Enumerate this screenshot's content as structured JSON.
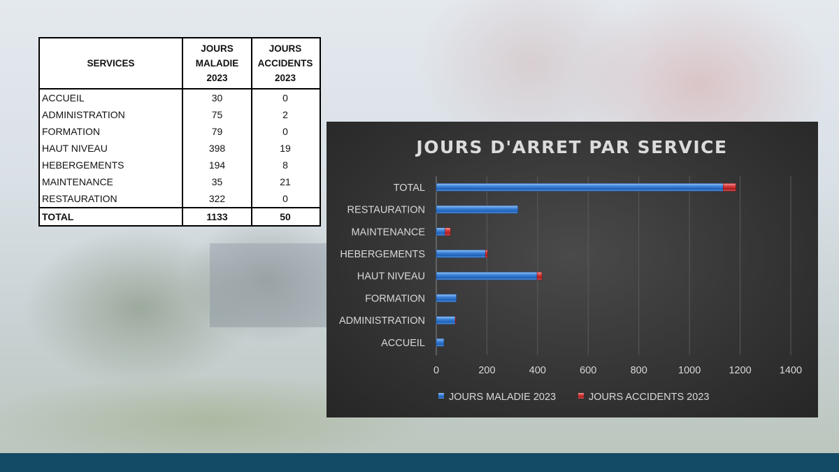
{
  "table": {
    "headers": {
      "services": "SERVICES",
      "maladie": [
        "JOURS",
        "MALADIE",
        "2023"
      ],
      "accidents": [
        "JOURS",
        "ACCIDENTS",
        "2023"
      ]
    },
    "rows": [
      {
        "service": "ACCUEIL",
        "maladie": "30",
        "accidents": "0"
      },
      {
        "service": "ADMINISTRATION",
        "maladie": "75",
        "accidents": "2"
      },
      {
        "service": "FORMATION",
        "maladie": "79",
        "accidents": "0"
      },
      {
        "service": "HAUT NIVEAU",
        "maladie": "398",
        "accidents": "19"
      },
      {
        "service": "HEBERGEMENTS",
        "maladie": "194",
        "accidents": "8"
      },
      {
        "service": "MAINTENANCE",
        "maladie": "35",
        "accidents": "21"
      },
      {
        "service": "RESTAURATION",
        "maladie": "322",
        "accidents": "0"
      }
    ],
    "total": {
      "service": "TOTAL",
      "maladie": "1133",
      "accidents": "50"
    }
  },
  "chart_data": {
    "type": "bar",
    "orientation": "horizontal",
    "stacked": true,
    "title": "JOURS D'ARRET PAR SERVICE",
    "categories": [
      "ACCUEIL",
      "ADMINISTRATION",
      "FORMATION",
      "HAUT NIVEAU",
      "HEBERGEMENTS",
      "MAINTENANCE",
      "RESTAURATION",
      "TOTAL"
    ],
    "series": [
      {
        "name": "JOURS MALADIE 2023",
        "values": [
          30,
          75,
          79,
          398,
          194,
          35,
          322,
          1133
        ],
        "color": "#3a7fd6"
      },
      {
        "name": "JOURS ACCIDENTS 2023",
        "values": [
          0,
          2,
          0,
          19,
          8,
          21,
          0,
          50
        ],
        "color": "#d13a3a"
      }
    ],
    "xlim": [
      0,
      1400
    ],
    "xticks": [
      "0",
      "200",
      "400",
      "600",
      "800",
      "1000",
      "1200",
      "1400"
    ],
    "grid": true,
    "legend": "bottom"
  },
  "colors": {
    "footer": "#134a66",
    "chart_background": "#333333"
  }
}
